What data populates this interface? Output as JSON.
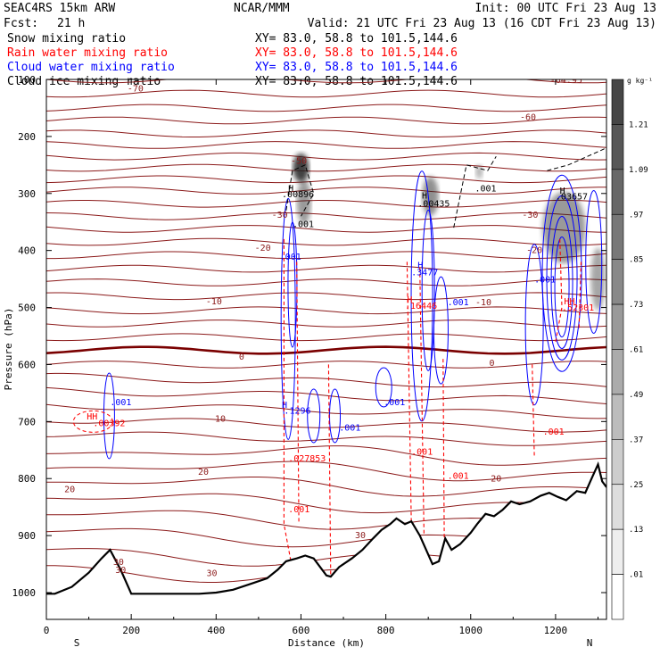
{
  "header": {
    "model": "SEAC4RS 15km ARW",
    "org": "NCAR/MMM",
    "init": "Init: 00 UTC Fri 23 Aug 13",
    "fcst_label": "Fcst:",
    "fcst_value": "21 h",
    "valid": "Valid: 21 UTC Fri 23 Aug 13 (16 CDT Fri 23 Aug 13)"
  },
  "fields": [
    {
      "label": "Snow mixing ratio",
      "xy": "XY=  83.0, 58.8 to 101.5,144.6",
      "color": "#000000"
    },
    {
      "label": "Rain water mixing ratio",
      "xy": "XY=  83.0, 58.8 to 101.5,144.6",
      "color": "#ff0000"
    },
    {
      "label": "Cloud water mixing ratio",
      "xy": "XY=  83.0, 58.8 to 101.5,144.6",
      "color": "#0000ff"
    },
    {
      "label": "Cloud ice mixing ratio",
      "xy": "XY=  83.0, 58.8 to 101.5,144.6",
      "color": "#000000"
    }
  ],
  "colors": {
    "temperature": "#8b1a1a",
    "freezing_level": "#7a0000",
    "rain": "#ff0000",
    "cloud_water": "#0000ff",
    "snow_shade": "#000000",
    "terrain": "#000000"
  },
  "chart_data": {
    "type": "cross-section",
    "xlabel": "Distance (km)",
    "ylabel": "Pressure (hPa)",
    "xlim": [
      0,
      1320
    ],
    "ylim": [
      1050,
      100
    ],
    "xticks": [
      0,
      200,
      400,
      600,
      800,
      1000,
      1200
    ],
    "xtick_labels": [
      "0",
      "200",
      "400",
      "600",
      "800",
      "1000",
      "1200"
    ],
    "yticks": [
      100,
      200,
      300,
      400,
      500,
      600,
      700,
      800,
      900,
      1000
    ],
    "ytick_labels": [
      "100",
      "200",
      "300",
      "400",
      "500",
      "600",
      "700",
      "800",
      "900",
      "1000"
    ],
    "endpoint_left": "S",
    "endpoint_right": "N",
    "colorbar": {
      "unit": "g kg⁻¹",
      "levels": [
        "1.21",
        "1.09",
        ".97",
        ".85",
        ".73",
        ".61",
        ".49",
        ".37",
        ".25",
        ".13",
        ".01"
      ]
    },
    "temperature_labels": [
      {
        "text": "-70",
        "x": 210,
        "p": 115
      },
      {
        "text": "-64.95",
        "x": 1225,
        "p": 100
      },
      {
        "text": "-60",
        "x": 1135,
        "p": 165
      },
      {
        "text": "-50",
        "x": 595,
        "p": 242
      },
      {
        "text": "-30",
        "x": 550,
        "p": 336
      },
      {
        "text": "-30",
        "x": 1140,
        "p": 336
      },
      {
        "text": "-20",
        "x": 510,
        "p": 394
      },
      {
        "text": "-20",
        "x": 1150,
        "p": 398
      },
      {
        "text": "-10",
        "x": 395,
        "p": 488
      },
      {
        "text": "-10",
        "x": 1030,
        "p": 490
      },
      {
        "text": "0",
        "x": 460,
        "p": 585
      },
      {
        "text": "0",
        "x": 1050,
        "p": 596
      },
      {
        "text": "10",
        "x": 410,
        "p": 694
      },
      {
        "text": "20",
        "x": 370,
        "p": 787
      },
      {
        "text": "20",
        "x": 55,
        "p": 818
      },
      {
        "text": "20",
        "x": 1060,
        "p": 799
      },
      {
        "text": "30",
        "x": 740,
        "p": 898
      },
      {
        "text": "30",
        "x": 175,
        "p": 959
      },
      {
        "text": "30",
        "x": 390,
        "p": 965
      },
      {
        "text": "30",
        "x": 170,
        "p": 945
      }
    ],
    "extrema_labels": [
      {
        "text": "H",
        "x": 570,
        "p": 290,
        "color": "#000000"
      },
      {
        "text": ".00896",
        "x": 555,
        "p": 300,
        "color": "#000000"
      },
      {
        "text": ".001",
        "x": 580,
        "p": 353,
        "color": "#000000"
      },
      {
        "text": ".001",
        "x": 550,
        "p": 410,
        "color": "#0000ff"
      },
      {
        "text": "H",
        "x": 885,
        "p": 303,
        "color": "#000000"
      },
      {
        "text": ".00435",
        "x": 875,
        "p": 317,
        "color": "#000000"
      },
      {
        "text": ".001",
        "x": 1010,
        "p": 290,
        "color": "#000000"
      },
      {
        "text": "H",
        "x": 1210,
        "p": 294,
        "color": "#000000"
      },
      {
        "text": ".03657",
        "x": 1200,
        "p": 304,
        "color": "#000000"
      },
      {
        "text": "H",
        "x": 875,
        "p": 425,
        "color": "#0000ff"
      },
      {
        "text": ".3477",
        "x": 860,
        "p": 437,
        "color": "#0000ff"
      },
      {
        "text": "H",
        "x": 850,
        "p": 485,
        "color": "#ff0000"
      },
      {
        "text": ".16446",
        "x": 845,
        "p": 496,
        "color": "#ff0000"
      },
      {
        "text": ".001",
        "x": 945,
        "p": 490,
        "color": "#0000ff"
      },
      {
        "text": ".001",
        "x": 1150,
        "p": 450,
        "color": "#0000ff"
      },
      {
        "text": "HH",
        "x": 1220,
        "p": 488,
        "color": "#ff0000"
      },
      {
        "text": ".52301",
        "x": 1215,
        "p": 499,
        "color": "#ff0000"
      },
      {
        "text": ".001",
        "x": 150,
        "p": 665,
        "color": "#0000ff"
      },
      {
        "text": "HH",
        "x": 95,
        "p": 690,
        "color": "#ff0000"
      },
      {
        "text": ".00392",
        "x": 110,
        "p": 702,
        "color": "#ff0000"
      },
      {
        "text": ".001",
        "x": 795,
        "p": 665,
        "color": "#0000ff"
      },
      {
        "text": "H",
        "x": 555,
        "p": 670,
        "color": "#0000ff"
      },
      {
        "text": ".1296",
        "x": 560,
        "p": 680,
        "color": "#0000ff"
      },
      {
        "text": ".001",
        "x": 690,
        "p": 710,
        "color": "#0000ff"
      },
      {
        "text": ".027853",
        "x": 570,
        "p": 764,
        "color": "#ff0000"
      },
      {
        "text": ".001",
        "x": 860,
        "p": 752,
        "color": "#ff0000"
      },
      {
        "text": ".001",
        "x": 945,
        "p": 794,
        "color": "#ff0000"
      },
      {
        "text": ".001",
        "x": 1170,
        "p": 717,
        "color": "#ff0000"
      },
      {
        "text": ".001",
        "x": 570,
        "p": 853,
        "color": "#ff0000"
      }
    ],
    "terrain": {
      "x": [
        0,
        20,
        60,
        100,
        130,
        150,
        175,
        200,
        240,
        280,
        320,
        360,
        400,
        440,
        480,
        520,
        545,
        565,
        590,
        610,
        630,
        645,
        660,
        670,
        690,
        720,
        745,
        770,
        790,
        810,
        825,
        845,
        860,
        880,
        895,
        910,
        925,
        940,
        955,
        975,
        1000,
        1015,
        1035,
        1055,
        1075,
        1095,
        1115,
        1140,
        1165,
        1185,
        1205,
        1225,
        1250,
        1270,
        1285,
        1300,
        1310,
        1320
      ],
      "p": [
        1002,
        1002,
        990,
        965,
        940,
        925,
        960,
        1002,
        1002,
        1002,
        1002,
        1002,
        1000,
        995,
        985,
        975,
        960,
        945,
        940,
        935,
        940,
        955,
        970,
        972,
        955,
        940,
        925,
        905,
        890,
        880,
        870,
        880,
        875,
        900,
        925,
        950,
        945,
        905,
        925,
        915,
        895,
        880,
        862,
        866,
        855,
        840,
        845,
        840,
        830,
        825,
        832,
        838,
        822,
        825,
        800,
        775,
        805,
        815
      ]
    }
  }
}
